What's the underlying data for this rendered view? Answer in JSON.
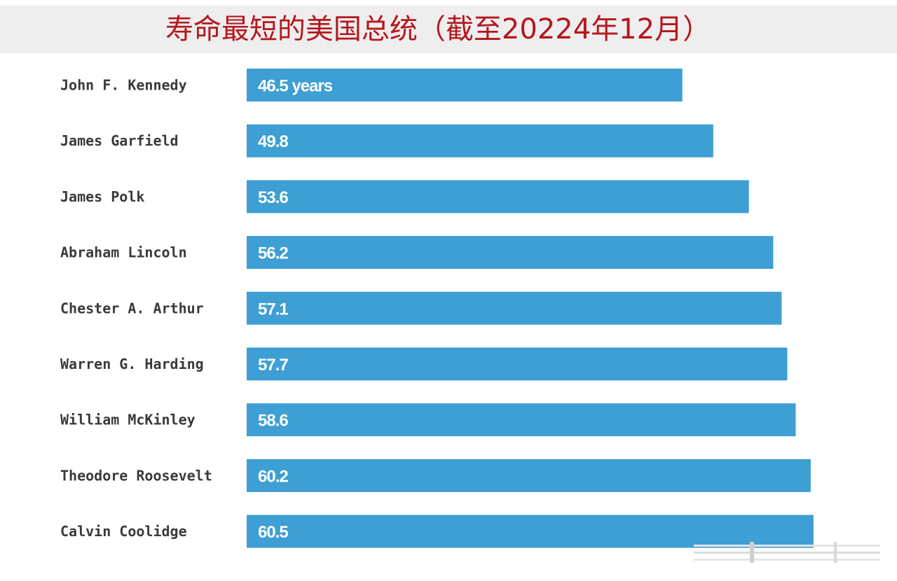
{
  "chart_data": {
    "type": "bar",
    "orientation": "horizontal",
    "title": "寿命最短的美国总统（截至20224年12月）",
    "categories": [
      "John F. Kennedy",
      "James Garfield",
      "James Polk",
      "Abraham Lincoln",
      "Chester A. Arthur",
      "Warren G. Harding",
      "William McKinley",
      "Theodore Roosevelt",
      "Calvin Coolidge"
    ],
    "values": [
      46.5,
      49.8,
      53.6,
      56.2,
      57.1,
      57.7,
      58.6,
      60.2,
      60.5
    ],
    "value_labels": [
      "46.5 years",
      "49.8",
      "53.6",
      "56.2",
      "57.1",
      "57.7",
      "58.6",
      "60.2",
      "60.5"
    ],
    "bar_color": "#3d9fd3",
    "title_color": "#b5171d",
    "grid": false,
    "legend": "none"
  }
}
